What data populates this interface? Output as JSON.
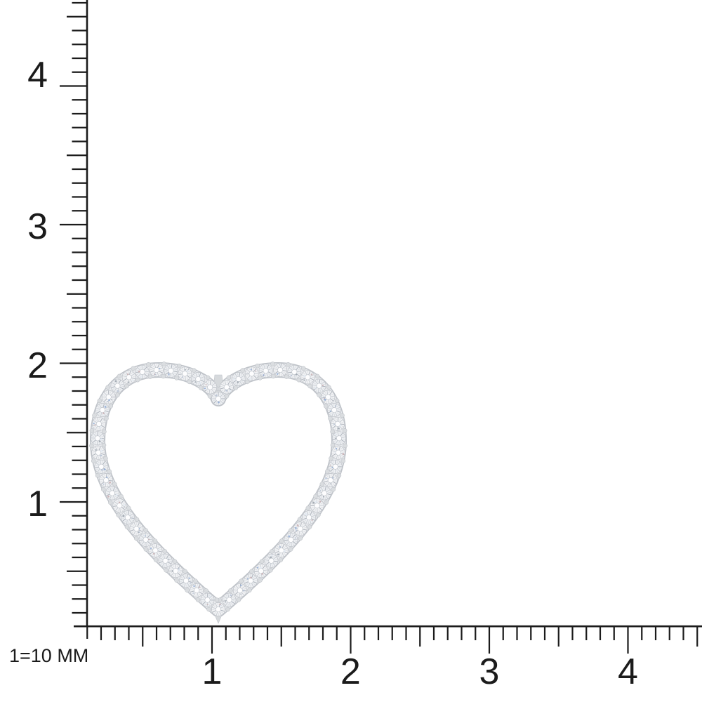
{
  "title": "Diamond open-heart pendant photographed on a millimeter scale ruler",
  "background_color": "#ffffff",
  "scale_label": {
    "text": "1=10 MM"
  },
  "rulers": {
    "color": "#1b1b1b",
    "minor_ticks_per_unit": 10,
    "vertical": {
      "labels": [
        "4",
        "3",
        "2",
        "1"
      ]
    },
    "horizontal": {
      "labels": [
        "1",
        "2",
        "3",
        "4"
      ]
    }
  },
  "pendant": {
    "kind": "open heart outline pave-set with round brilliant diamonds",
    "stone_count": 54,
    "metal_color": "#d6d9dc",
    "metal_edge_color": "#bfc3c9",
    "metal_light_color": "#e9ebee",
    "prong_color": "#dadde0",
    "prong_edge_color": "#b6bac0",
    "stone_fill": "#f2f3f5",
    "stone_fill_alt": "#eef0f3",
    "stone_outline": "#bcc0c6",
    "facet_color": "#c7ccd2",
    "facet_dark": "#a9afb8",
    "table_fill": "#fdfdfe",
    "table_edge": "#c2c7cd",
    "sparkle_colors": [
      "#8ea9d3",
      "#b4c0d4",
      "#9aa2ac",
      "#e3ebf5",
      "#c9aeb0"
    ]
  }
}
